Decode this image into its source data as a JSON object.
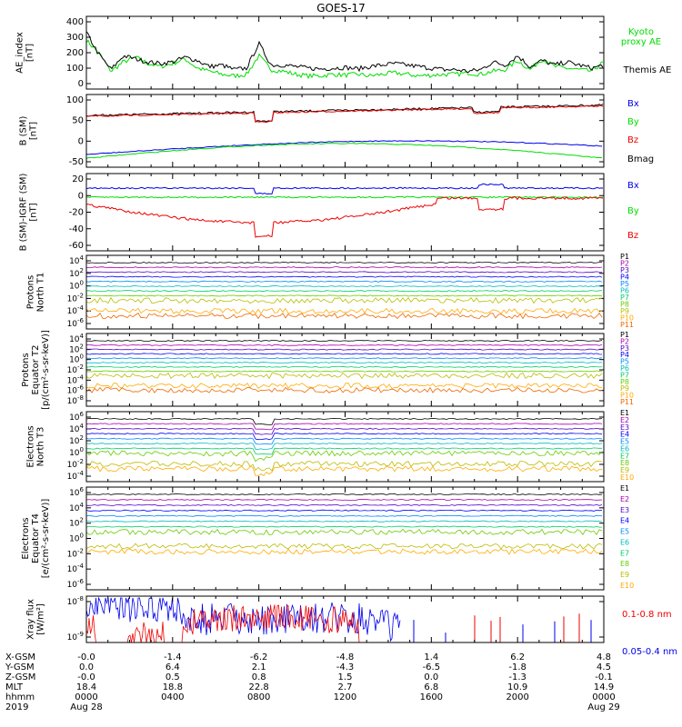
{
  "title": "GOES-17",
  "colors": {
    "black": "#000000",
    "green": "#00dd00",
    "blue": "#0000ee",
    "red": "#ee0000",
    "rainbow": [
      "#000000",
      "#aa00aa",
      "#5500cc",
      "#0000ff",
      "#0088ff",
      "#00bbbb",
      "#00cc66",
      "#66cc00",
      "#bbbb00",
      "#ffaa00",
      "#ee6600",
      "#dd0000",
      "#aa0000"
    ]
  },
  "chart_data": [
    {
      "type": "line",
      "title": "GOES-17",
      "ylabel": "AE_index [nT]",
      "ylim": [
        0,
        400
      ],
      "yticks": [
        "400",
        "300",
        "200",
        "100",
        "0"
      ],
      "series": [
        {
          "name": "Kyoto proxy AE",
          "color": "#00dd00",
          "values": [
            280,
            200,
            80,
            140,
            170,
            130,
            110,
            130,
            160,
            100,
            80,
            60,
            50,
            60,
            180,
            90,
            80,
            60,
            50,
            50,
            60,
            55,
            60,
            50,
            60,
            70,
            60,
            50,
            55,
            60,
            60,
            70,
            60,
            80,
            90,
            150,
            90,
            160,
            110,
            100,
            90,
            80,
            140
          ]
        },
        {
          "name": "Themis AE",
          "color": "#000000",
          "values": [
            330,
            190,
            90,
            180,
            160,
            140,
            130,
            140,
            170,
            150,
            110,
            120,
            90,
            100,
            260,
            120,
            120,
            110,
            100,
            95,
            100,
            105,
            95,
            110,
            120,
            130,
            120,
            110,
            100,
            90,
            90,
            80,
            90,
            140,
            120,
            180,
            110,
            150,
            120,
            140,
            120,
            100,
            120
          ]
        }
      ]
    },
    {
      "type": "line",
      "ylabel": "B (SM) [nT]",
      "ylim": [
        -60,
        125
      ],
      "yticks": [
        "100",
        "50",
        "0",
        "-50"
      ],
      "series": [
        {
          "name": "Bx",
          "color": "#0000ee"
        },
        {
          "name": "By",
          "color": "#00dd00"
        },
        {
          "name": "Bz",
          "color": "#ee0000"
        },
        {
          "name": "Bmag",
          "color": "#000000"
        }
      ]
    },
    {
      "type": "line",
      "ylabel": "B (SM)-IGRF (SM) [nT]",
      "ylim": [
        -62,
        22
      ],
      "yticks": [
        "20",
        "0",
        "-20",
        "-40",
        "-60"
      ],
      "series": [
        {
          "name": "Bx",
          "color": "#0000ee"
        },
        {
          "name": "By",
          "color": "#00dd00"
        },
        {
          "name": "Bz",
          "color": "#ee0000"
        }
      ]
    },
    {
      "type": "line",
      "ylabel": "Protons North T1",
      "yscale": "log",
      "yticks": [
        "10^4",
        "10^2",
        "10^0",
        "10^-2",
        "10^-4",
        "10^-6"
      ],
      "series_labels": [
        "P1",
        "P2",
        "P3",
        "P4",
        "P5",
        "P6",
        "P7",
        "P8",
        "P9",
        "P10",
        "P11"
      ]
    },
    {
      "type": "line",
      "ylabel": "Protons Equator T2 [p/(cm²-s-sr-keV)]",
      "yscale": "log",
      "yticks": [
        "10^4",
        "10^2",
        "10^0",
        "10^-2",
        "10^-4",
        "10^-6",
        "10^-8"
      ],
      "series_labels": [
        "P1",
        "P2",
        "P3",
        "P4",
        "P5",
        "P6",
        "P7",
        "P8",
        "P9",
        "P10",
        "P11"
      ]
    },
    {
      "type": "line",
      "ylabel": "Electrons North T3",
      "yscale": "log",
      "yticks": [
        "10^6",
        "10^4",
        "10^2",
        "10^0",
        "10^-2",
        "10^-4"
      ],
      "series_labels": [
        "E1",
        "E2",
        "E3",
        "E4",
        "E5",
        "E6",
        "E7",
        "E8",
        "E9",
        "E10"
      ]
    },
    {
      "type": "line",
      "ylabel": "Electrons Equator T4 [e/(cm²-s-sr-keV)]",
      "yscale": "log",
      "yticks": [
        "10^6",
        "10^4",
        "10^2",
        "10^0",
        "10^-2",
        "10^-4",
        "10^-6"
      ],
      "series_labels": [
        "E1",
        "E2",
        "E3",
        "E4",
        "E5",
        "E6",
        "E7",
        "E8",
        "E9",
        "E10"
      ]
    },
    {
      "type": "line",
      "ylabel": "Xray flux [W/m²]",
      "yscale": "log",
      "yticks": [
        "10^-8",
        "10^-9"
      ],
      "series": [
        {
          "name": "0.1-0.8 nm",
          "color": "#ee0000"
        },
        {
          "name": "0.05-0.4 nm",
          "color": "#0000ee"
        }
      ]
    }
  ],
  "axis_table": {
    "row_labels": [
      "X-GSM",
      "Y-GSM",
      "Z-GSM",
      "MLT",
      "hhmm",
      "2019"
    ],
    "columns": [
      [
        "-0.0",
        "0.0",
        "-0.0",
        "18.4",
        "0000",
        "Aug 28"
      ],
      [
        "-1.4",
        "6.4",
        "0.5",
        "18.8",
        "0400",
        ""
      ],
      [
        "-6.2",
        "2.1",
        "0.8",
        "22.8",
        "0800",
        ""
      ],
      [
        "-4.8",
        "-4.3",
        "1.5",
        "2.7",
        "1200",
        ""
      ],
      [
        "1.4",
        "-6.5",
        "0.0",
        "6.8",
        "1600",
        ""
      ],
      [
        "6.2",
        "-1.8",
        "-1.3",
        "10.9",
        "2000",
        ""
      ],
      [
        "4.8",
        "4.5",
        "-0.1",
        "14.9",
        "0000",
        "Aug 29"
      ]
    ]
  }
}
